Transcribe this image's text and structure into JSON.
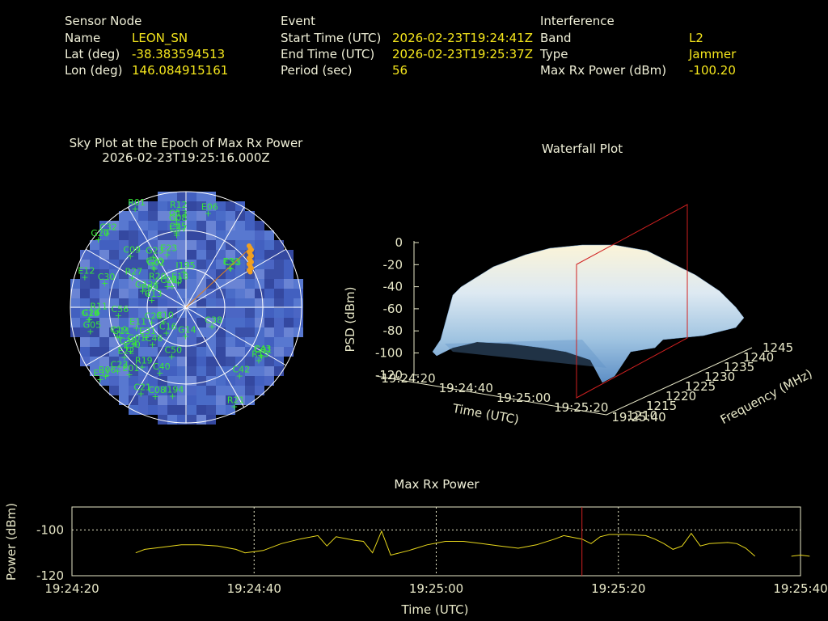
{
  "header": {
    "sensor": {
      "title": "Sensor Node",
      "rows": [
        {
          "label": "Name",
          "value": "LEON_SN"
        },
        {
          "label": "Lat (deg)",
          "value": "-38.383594513"
        },
        {
          "label": "Lon (deg)",
          "value": "146.084915161"
        }
      ]
    },
    "event": {
      "title": "Event",
      "rows": [
        {
          "label": "Start Time (UTC)",
          "value": "2026-02-23T19:24:41Z"
        },
        {
          "label": "End Time (UTC)",
          "value": "2026-02-23T19:25:37Z"
        },
        {
          "label": "Period (sec)",
          "value": "56"
        }
      ]
    },
    "interference": {
      "title": "Interference",
      "rows": [
        {
          "label": "Band",
          "value": "L2"
        },
        {
          "label": "Type",
          "value": "Jammer"
        },
        {
          "label": "Max Rx Power (dBm)",
          "value": "-100.20"
        }
      ]
    }
  },
  "skyplot": {
    "title_line1": "Sky Plot at the Epoch of Max Rx Power",
    "title_line2": "2026-02-23T19:25:16.000Z",
    "satellites": [
      "C25",
      "C13",
      "G14",
      "C08",
      "R15",
      "E11",
      "G20",
      "C16",
      "C38",
      "C33",
      "R27",
      "C09",
      "E31",
      "R01",
      "C24",
      "R06",
      "C03",
      "C01",
      "E30",
      "C23",
      "E12",
      "E23",
      "C40",
      "C26",
      "G08",
      "C56",
      "C42",
      "E01",
      "C32",
      "E06",
      "I194",
      "I195",
      "G23",
      "E31",
      "C46",
      "R11",
      "G13",
      "C30",
      "C10",
      "E09",
      "C37",
      "R19",
      "E22",
      "C28",
      "C19",
      "G02",
      "C43",
      "C50",
      "G01",
      "C35",
      "E18",
      "C20",
      "C21",
      "R21",
      "R20",
      "G05",
      "E33",
      "G12",
      "G10",
      "G11",
      "R12"
    ]
  },
  "waterfall": {
    "title": "Waterfall Plot",
    "zlabel": "PSD (dBm)",
    "xlabel": "Time (UTC)",
    "ylabel": "Frequency (MHz)",
    "z_ticks": [
      "0",
      "-20",
      "-40",
      "-60",
      "-80",
      "-100",
      "-120"
    ],
    "x_ticks": [
      "19:24:20",
      "19:24:40",
      "19:25:00",
      "19:25:20",
      "19:25:40"
    ],
    "y_ticks": [
      "1210",
      "1215",
      "1220",
      "1225",
      "1230",
      "1235",
      "1240",
      "1245"
    ]
  },
  "chart_data": {
    "type": "line",
    "title": "Max Rx Power",
    "xlabel": "Time (UTC)",
    "ylabel": "Power (dBm)",
    "x_ticks": [
      "19:24:20",
      "19:24:40",
      "19:25:00",
      "19:25:20",
      "19:25:40"
    ],
    "y_ticks": [
      "-100",
      "-120"
    ],
    "xlim_sec": [
      0,
      80
    ],
    "ylim": [
      -120,
      -90
    ],
    "marker_sec": 56,
    "series": [
      {
        "segments": [
          [
            [
              7,
              -110
            ],
            [
              8,
              -108.5
            ],
            [
              10,
              -107.5
            ],
            [
              12,
              -106.5
            ],
            [
              14,
              -106.5
            ],
            [
              16,
              -107
            ],
            [
              18,
              -108.5
            ],
            [
              19,
              -110
            ],
            [
              21,
              -109
            ],
            [
              23,
              -106
            ],
            [
              25,
              -104
            ],
            [
              27,
              -102.5
            ],
            [
              28,
              -107
            ],
            [
              29,
              -103
            ],
            [
              31,
              -104.5
            ],
            [
              32,
              -105
            ],
            [
              33,
              -110
            ],
            [
              34,
              -100.5
            ],
            [
              35,
              -111
            ],
            [
              37,
              -109
            ],
            [
              39,
              -106.5
            ],
            [
              41,
              -105
            ],
            [
              43,
              -105
            ],
            [
              45,
              -106
            ],
            [
              47,
              -107
            ],
            [
              49,
              -108
            ],
            [
              51,
              -106.5
            ],
            [
              53,
              -104
            ],
            [
              54,
              -102.5
            ],
            [
              56,
              -104
            ],
            [
              57,
              -106
            ],
            [
              58,
              -103
            ],
            [
              59,
              -102
            ],
            [
              61,
              -102
            ],
            [
              63,
              -102.5
            ],
            [
              64,
              -104
            ],
            [
              65,
              -106
            ],
            [
              66,
              -108.5
            ],
            [
              67,
              -107
            ],
            [
              68,
              -101.5
            ],
            [
              69,
              -107
            ],
            [
              70,
              -106
            ],
            [
              72,
              -105.5
            ],
            [
              73,
              -106
            ],
            [
              74,
              -108
            ],
            [
              75,
              -111.5
            ]
          ],
          [
            [
              79,
              -111.5
            ],
            [
              80,
              -111
            ],
            [
              81,
              -111.5
            ]
          ]
        ]
      }
    ]
  }
}
